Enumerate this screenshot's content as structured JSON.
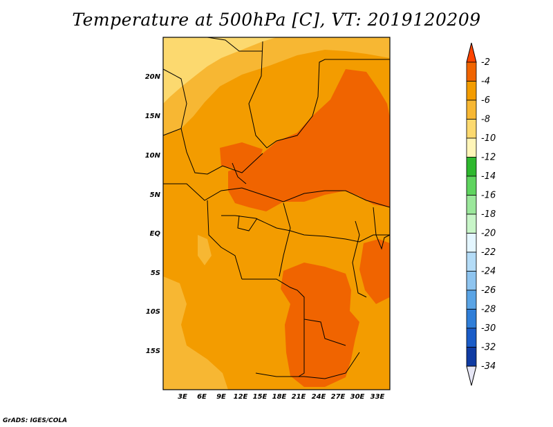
{
  "title": "Temperature at 500hPa [C], VT: 2019120209",
  "credit": "GrADS: IGES/COLA",
  "lat_labels": [
    "20N",
    "15N",
    "10N",
    "5N",
    "EQ",
    "5S",
    "10S",
    "15S"
  ],
  "lon_labels": [
    "3E",
    "6E",
    "9E",
    "12E",
    "15E",
    "18E",
    "21E",
    "24E",
    "27E",
    "30E",
    "33E"
  ],
  "colorbar": {
    "labels": [
      "-2",
      "-4",
      "-6",
      "-8",
      "-10",
      "-12",
      "-14",
      "-16",
      "-18",
      "-20",
      "-22",
      "-24",
      "-26",
      "-28",
      "-30",
      "-32",
      "-34"
    ],
    "colors": [
      "#ff4400",
      "#f06400",
      "#f39c00",
      "#f7b733",
      "#fcd96f",
      "#fff5b8",
      "#2eb82e",
      "#5fd45f",
      "#9be79b",
      "#c8f5c8",
      "#e4f6ff",
      "#b4dcf7",
      "#8ec4ef",
      "#5aa4e5",
      "#2f7ed8",
      "#1a5cc8",
      "#0f3ba3",
      "#08136b"
    ]
  },
  "map_colors": {
    "c6": "#f39c00",
    "c4": "#f06400",
    "c8": "#f7b733",
    "c10": "#fcd96f"
  }
}
